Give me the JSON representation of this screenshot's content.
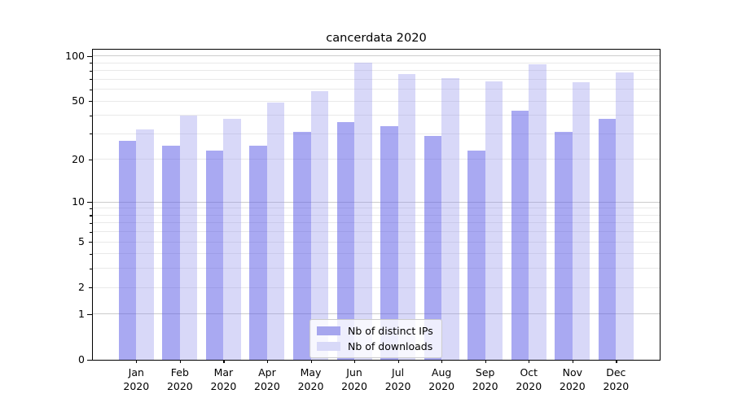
{
  "figure": {
    "title": "cancerdata 2020"
  },
  "chart_data": {
    "type": "bar",
    "title": "cancerdata 2020",
    "categories": [
      "Jan",
      "Feb",
      "Mar",
      "Apr",
      "May",
      "Jun",
      "Jul",
      "Aug",
      "Sep",
      "Oct",
      "Nov",
      "Dec"
    ],
    "x_tick_year": "2020",
    "series": [
      {
        "name": "Nb of distinct IPs",
        "color": "#a6a6ee",
        "values": [
          27,
          25,
          23,
          25,
          31,
          36,
          34,
          29,
          23,
          43,
          31,
          38
        ]
      },
      {
        "name": "Nb of downloads",
        "color": "#d8d9f8",
        "values": [
          32,
          40,
          38,
          49,
          58,
          90,
          76,
          71,
          68,
          88,
          67,
          78
        ]
      }
    ],
    "ylabel": "",
    "xlabel": "",
    "yscale": "symlog (position proportional to log10(value+1))",
    "ylim": [
      0,
      112
    ],
    "yticks_labeled": [
      0,
      1,
      2,
      5,
      10,
      20,
      50,
      100
    ],
    "yticks_minor": [
      3,
      4,
      6,
      7,
      8,
      9,
      30,
      40,
      60,
      70,
      80,
      90
    ],
    "grid": "horizontal",
    "legend_position": "inside lower-center",
    "colors": {
      "bar_dark": "#a6a6ee",
      "bar_light": "#d8d9f8",
      "major_grid": "#cccccc",
      "minor_grid": "#e9e9e9",
      "spine": "#000000"
    }
  }
}
